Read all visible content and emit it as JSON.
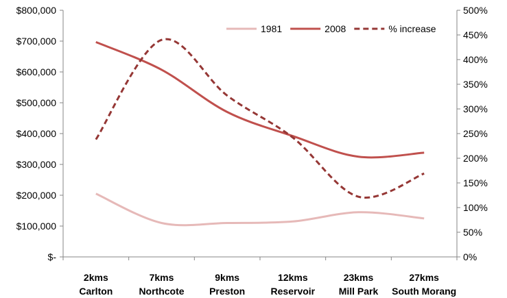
{
  "chart_data": {
    "type": "line",
    "title": "",
    "categories": [
      [
        "2kms",
        "Carlton"
      ],
      [
        "7kms",
        "Northcote"
      ],
      [
        "9kms",
        "Preston"
      ],
      [
        "12kms",
        "Reservoir"
      ],
      [
        "23kms",
        "Mill Park"
      ],
      [
        "27kms",
        "South Morang"
      ]
    ],
    "y_left": {
      "range": [
        0,
        800000
      ],
      "tick_labels": [
        "$-",
        "$100,000",
        "$200,000",
        "$300,000",
        "$400,000",
        "$500,000",
        "$600,000",
        "$700,000",
        "$800,000"
      ]
    },
    "y_right": {
      "range": [
        0,
        500
      ],
      "tick_labels": [
        "0%",
        "50%",
        "100%",
        "150%",
        "200%",
        "250%",
        "300%",
        "350%",
        "400%",
        "450%",
        "500%"
      ]
    },
    "series": [
      {
        "name": "1981",
        "axis": "left",
        "color": "#e6b9b8",
        "dash": "solid",
        "values": [
          205000,
          110000,
          110000,
          115000,
          145000,
          125000
        ]
      },
      {
        "name": "2008",
        "axis": "left",
        "color": "#c0504d",
        "dash": "solid",
        "values": [
          697000,
          607000,
          470000,
          392000,
          325000,
          338000
        ]
      },
      {
        "name": "% increase",
        "axis": "right",
        "color": "#953735",
        "dash": "dashed",
        "values": [
          238,
          440,
          327,
          242,
          122,
          169
        ]
      }
    ],
    "legend_position": "top-right",
    "grid": false
  }
}
